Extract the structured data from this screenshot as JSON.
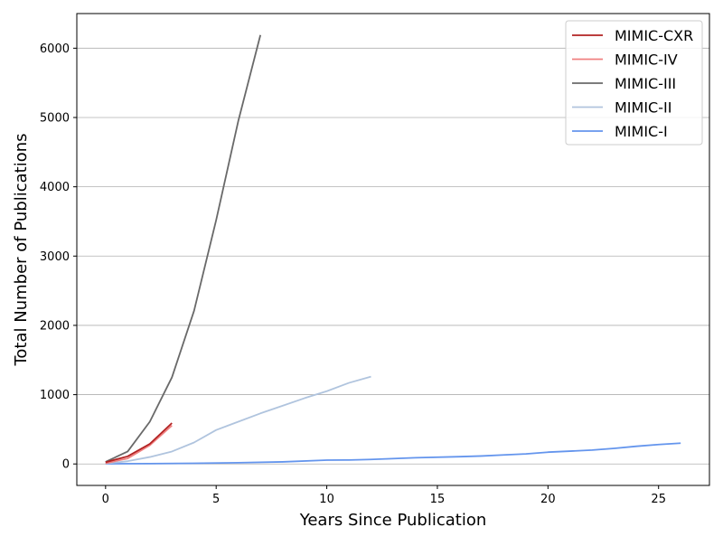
{
  "chart_data": {
    "type": "line",
    "title": "",
    "xlabel": "Years Since Publication",
    "ylabel": "Total Number of Publications",
    "xlim": [
      -1.3,
      27.3
    ],
    "ylim": [
      -310,
      6500
    ],
    "xticks": [
      0,
      5,
      10,
      15,
      20,
      25
    ],
    "yticks": [
      0,
      1000,
      2000,
      3000,
      4000,
      5000,
      6000
    ],
    "grid": "horizontal",
    "legend_position": "top-right",
    "series": [
      {
        "name": "MIMIC-CXR",
        "color": "#b22222",
        "x": [
          0,
          1,
          2,
          3
        ],
        "y": [
          25,
          110,
          290,
          590
        ]
      },
      {
        "name": "MIMIC-IV",
        "color": "#f08080",
        "x": [
          0,
          1,
          2,
          3
        ],
        "y": [
          10,
          80,
          270,
          555
        ]
      },
      {
        "name": "MIMIC-III",
        "color": "#696969",
        "x": [
          0,
          1,
          2,
          3,
          4,
          5,
          6,
          7
        ],
        "y": [
          30,
          180,
          610,
          1250,
          2210,
          3520,
          4950,
          6190
        ]
      },
      {
        "name": "MIMIC-II",
        "color": "#b0c4de",
        "x": [
          0,
          1,
          2,
          3,
          4,
          5,
          6,
          7,
          8,
          9,
          10,
          11,
          12
        ],
        "y": [
          5,
          40,
          100,
          180,
          310,
          490,
          610,
          730,
          840,
          950,
          1050,
          1170,
          1260
        ]
      },
      {
        "name": "MIMIC-I",
        "color": "#6495ed",
        "x": [
          0,
          2,
          4,
          6,
          8,
          10,
          11,
          12,
          14,
          16,
          17,
          18,
          19,
          20,
          21,
          22,
          23,
          24,
          25,
          26
        ],
        "y": [
          2,
          5,
          10,
          18,
          30,
          55,
          57,
          65,
          90,
          105,
          115,
          130,
          145,
          170,
          185,
          200,
          225,
          255,
          280,
          300
        ]
      }
    ]
  }
}
